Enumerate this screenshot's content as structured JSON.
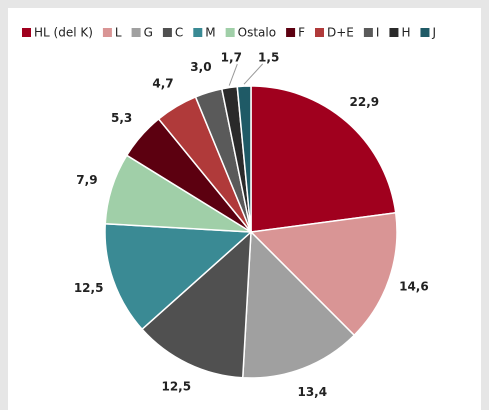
{
  "chart_data": {
    "type": "pie",
    "categories": [
      "HL (del K)",
      "L",
      "G",
      "C",
      "M",
      "Ostalo",
      "F",
      "D+E",
      "I",
      "H",
      "J"
    ],
    "values": [
      22.9,
      14.6,
      13.4,
      12.5,
      12.5,
      7.9,
      5.3,
      4.7,
      3.0,
      1.7,
      1.5
    ],
    "value_labels": [
      "22,9",
      "14,6",
      "13,4",
      "12,5",
      "12,5",
      "7,9",
      "5,3",
      "4,7",
      "3,0",
      "1,7",
      "1,5"
    ],
    "colors": [
      "#a0001e",
      "#d99595",
      "#a0a0a0",
      "#505050",
      "#3a8a94",
      "#a0cfa8",
      "#5c0010",
      "#b03a3a",
      "#5a5a5a",
      "#2a2a2a",
      "#1f5a66"
    ],
    "legend": "top"
  }
}
